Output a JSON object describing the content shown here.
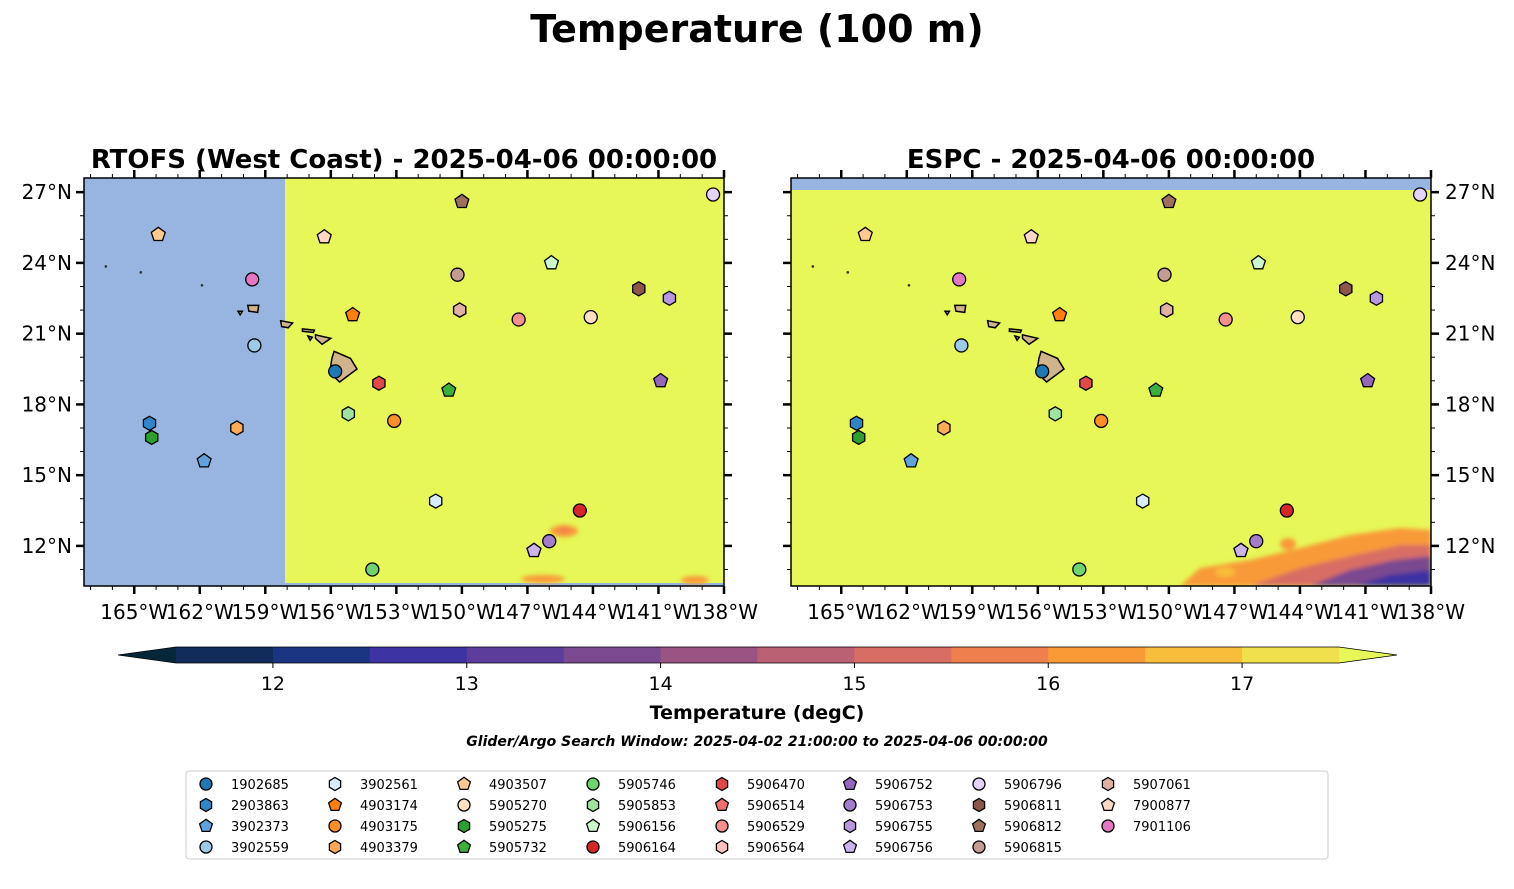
{
  "figure": {
    "suptitle": "Temperature (100 m)",
    "colorbar_label": "Temperature (degC)",
    "search_window": "Glider/Argo Search Window: 2025-04-02 21:00:00 to 2025-04-06 00:00:00"
  },
  "colors": {
    "land": "#d2b48c",
    "model_missing": "#98b5e1",
    "warm": "#e6f757",
    "cmap": [
      "#06273a",
      "#112c5b",
      "#1b3582",
      "#3e33a3",
      "#5c3d9c",
      "#7a4990",
      "#9a5483",
      "#ba6174",
      "#d86e63",
      "#ef7f4d",
      "#f99a37",
      "#f8bd3b",
      "#f0e04b"
    ]
  },
  "chart_data": [
    {
      "type": "heatmap",
      "panel": "RTOFS",
      "title": "RTOFS (West Coast) - 2025-04-06 00:00:00",
      "x_ticks": [
        "165°W",
        "162°W",
        "159°W",
        "156°W",
        "153°W",
        "150°W",
        "147°W",
        "144°W",
        "141°W",
        "138°W"
      ],
      "y_ticks": [
        "27°N",
        "24°N",
        "21°N",
        "18°N",
        "15°N",
        "12°N"
      ],
      "xlim": [
        -167.3,
        -138
      ],
      "ylim": [
        10.3,
        27.6
      ],
      "no_data_west_of": -158.1,
      "dominant_value": ">17.5"
    },
    {
      "type": "heatmap",
      "panel": "ESPC",
      "title": "ESPC - 2025-04-06 00:00:00",
      "x_ticks": [
        "165°W",
        "162°W",
        "159°W",
        "156°W",
        "153°W",
        "150°W",
        "147°W",
        "144°W",
        "141°W",
        "138°W"
      ],
      "y_ticks": [
        "27°N",
        "24°N",
        "21°N",
        "18°N",
        "15°N",
        "12°N"
      ],
      "xlim": [
        -167.3,
        -138
      ],
      "ylim": [
        10.3,
        27.6
      ],
      "no_data_north_of": 27.1,
      "dominant_value": ">17.5"
    },
    {
      "type": "colorbar",
      "label": "Temperature (degC)",
      "ticks": [
        "12",
        "13",
        "14",
        "15",
        "16",
        "17"
      ],
      "range": [
        11.5,
        17.5
      ],
      "extend": "both"
    },
    {
      "type": "scatter",
      "name": "glider_argo_floats",
      "points": [
        {
          "id": "1902685",
          "lon": -155.8,
          "lat": 19.4,
          "marker": "circle",
          "color": "#1f77b4"
        },
        {
          "id": "2903863",
          "lon": -164.3,
          "lat": 17.2,
          "marker": "hexagon",
          "color": "#2e86c8"
        },
        {
          "id": "3902373",
          "lon": -161.8,
          "lat": 15.6,
          "marker": "pentagon",
          "color": "#5fa2dd"
        },
        {
          "id": "3902559",
          "lon": -159.5,
          "lat": 20.5,
          "marker": "circle",
          "color": "#9ecae9"
        },
        {
          "id": "3902561",
          "lon": -151.2,
          "lat": 13.9,
          "marker": "hexagon",
          "color": "#d8ecfb"
        },
        {
          "id": "4903174",
          "lon": -155.0,
          "lat": 21.8,
          "marker": "pentagon",
          "color": "#ff7f0e"
        },
        {
          "id": "4903175",
          "lon": -153.1,
          "lat": 17.3,
          "marker": "circle",
          "color": "#ff8f26"
        },
        {
          "id": "4903379",
          "lon": -160.3,
          "lat": 17.0,
          "marker": "hexagon",
          "color": "#ffaa55"
        },
        {
          "id": "4903507",
          "lon": -163.9,
          "lat": 25.2,
          "marker": "pentagon",
          "color": "#ffc98f"
        },
        {
          "id": "5905270",
          "lon": -144.1,
          "lat": 21.7,
          "marker": "circle",
          "color": "#ffe1c2"
        },
        {
          "id": "5905275",
          "lon": -164.2,
          "lat": 16.6,
          "marker": "hexagon",
          "color": "#2ca02c"
        },
        {
          "id": "5905732",
          "lon": -150.6,
          "lat": 18.6,
          "marker": "pentagon",
          "color": "#3bb03b"
        },
        {
          "id": "5905746",
          "lon": -154.1,
          "lat": 11.0,
          "marker": "circle",
          "color": "#6fd36f"
        },
        {
          "id": "5905853",
          "lon": -155.2,
          "lat": 17.6,
          "marker": "hexagon",
          "color": "#9ee49e"
        },
        {
          "id": "5906156",
          "lon": -145.9,
          "lat": 24.0,
          "marker": "pentagon",
          "color": "#ccf8cc"
        },
        {
          "id": "5906164",
          "lon": -144.6,
          "lat": 13.5,
          "marker": "circle",
          "color": "#d62728"
        },
        {
          "id": "5906470",
          "lon": -153.8,
          "lat": 18.9,
          "marker": "hexagon",
          "color": "#e0494a"
        },
        {
          "id": "5906514",
          "lon": -146.7,
          "lat": 11.8,
          "marker": "pentagon",
          "color": "#ee6f70"
        },
        {
          "id": "5906529",
          "lon": -147.4,
          "lat": 21.6,
          "marker": "circle",
          "color": "#f59090"
        },
        {
          "id": "5906564",
          "lon": -150.1,
          "lat": 22.0,
          "marker": "hexagon",
          "color": "#ffc0c0"
        },
        {
          "id": "5906752",
          "lon": -140.9,
          "lat": 19.0,
          "marker": "pentagon",
          "color": "#9467bd"
        },
        {
          "id": "5906753",
          "lon": -146.0,
          "lat": 12.2,
          "marker": "circle",
          "color": "#a47ccd"
        },
        {
          "id": "5906755",
          "lon": -140.5,
          "lat": 22.5,
          "marker": "hexagon",
          "color": "#b896e0"
        },
        {
          "id": "5906756",
          "lon": -146.7,
          "lat": 11.8,
          "marker": "pentagon",
          "color": "#cdb2f0"
        },
        {
          "id": "5906796",
          "lon": -138.5,
          "lat": 26.9,
          "marker": "circle",
          "color": "#e4d4fb"
        },
        {
          "id": "5906811",
          "lon": -141.9,
          "lat": 22.9,
          "marker": "hexagon",
          "color": "#8c564b"
        },
        {
          "id": "5906812",
          "lon": -150.0,
          "lat": 26.6,
          "marker": "pentagon",
          "color": "#a0705f"
        },
        {
          "id": "5906815",
          "lon": -150.2,
          "lat": 23.5,
          "marker": "circle",
          "color": "#c49c94"
        },
        {
          "id": "5907061",
          "lon": -150.1,
          "lat": 22.0,
          "marker": "hexagon",
          "color": "#e0b0a0"
        },
        {
          "id": "7900877",
          "lon": -156.3,
          "lat": 25.1,
          "marker": "pentagon",
          "color": "#ffd8c8"
        },
        {
          "id": "7901106",
          "lon": -159.6,
          "lat": 23.3,
          "marker": "circle",
          "color": "#e377c2"
        }
      ]
    }
  ]
}
